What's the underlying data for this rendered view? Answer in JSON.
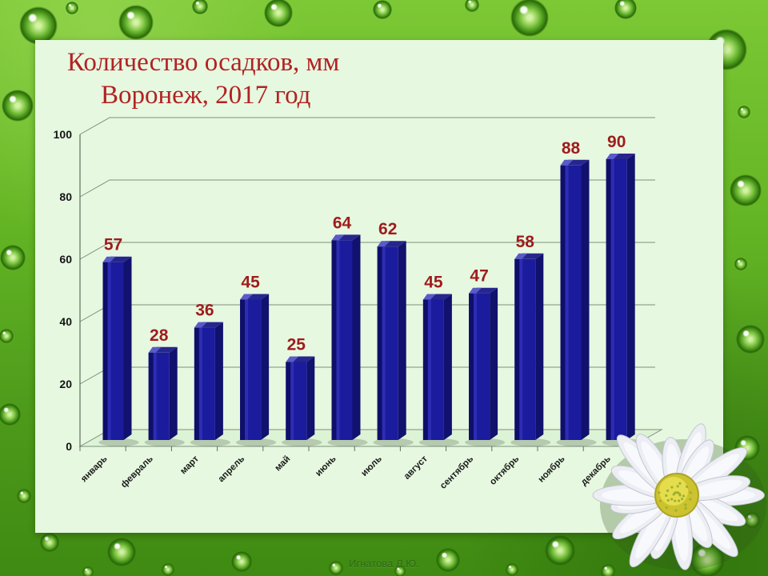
{
  "title": {
    "line1": "Количество осадков, мм",
    "line2": "Воронеж, 2017 год"
  },
  "footer": {
    "credit": "Игнатова Л.Ю."
  },
  "chart_data": {
    "type": "bar",
    "variant": "3d-column",
    "title": "Количество осадков, мм — Воронеж, 2017 год",
    "categories": [
      "январь",
      "февраль",
      "март",
      "апрель",
      "май",
      "июнь",
      "июль",
      "август",
      "сентябрь",
      "октябрь",
      "ноябрь",
      "декабрь"
    ],
    "values": [
      57,
      28,
      36,
      45,
      25,
      64,
      62,
      45,
      47,
      58,
      88,
      90
    ],
    "xlabel": "",
    "ylabel": "",
    "ylim": [
      0,
      100
    ],
    "yticks": [
      0,
      20,
      40,
      60,
      80,
      100
    ],
    "grid": true,
    "legend": false,
    "data_labels": true,
    "colors": {
      "bar": "#1b1b9e",
      "bar_dark": "#0f0f6a",
      "bar_light": "#2d2db4",
      "bar_top": "#26268e",
      "bar_side": "#11116e",
      "bar_highlight": "#5a5ac8",
      "value_label": "#9e1c1c",
      "gridline": "#7e8f7c",
      "axis": "#5f6e5e",
      "axis_text": "#141414"
    }
  },
  "theme": {
    "panel_bg": "#e6f8e0",
    "title_color": "#b22222",
    "background_green": "#5aa81e"
  }
}
